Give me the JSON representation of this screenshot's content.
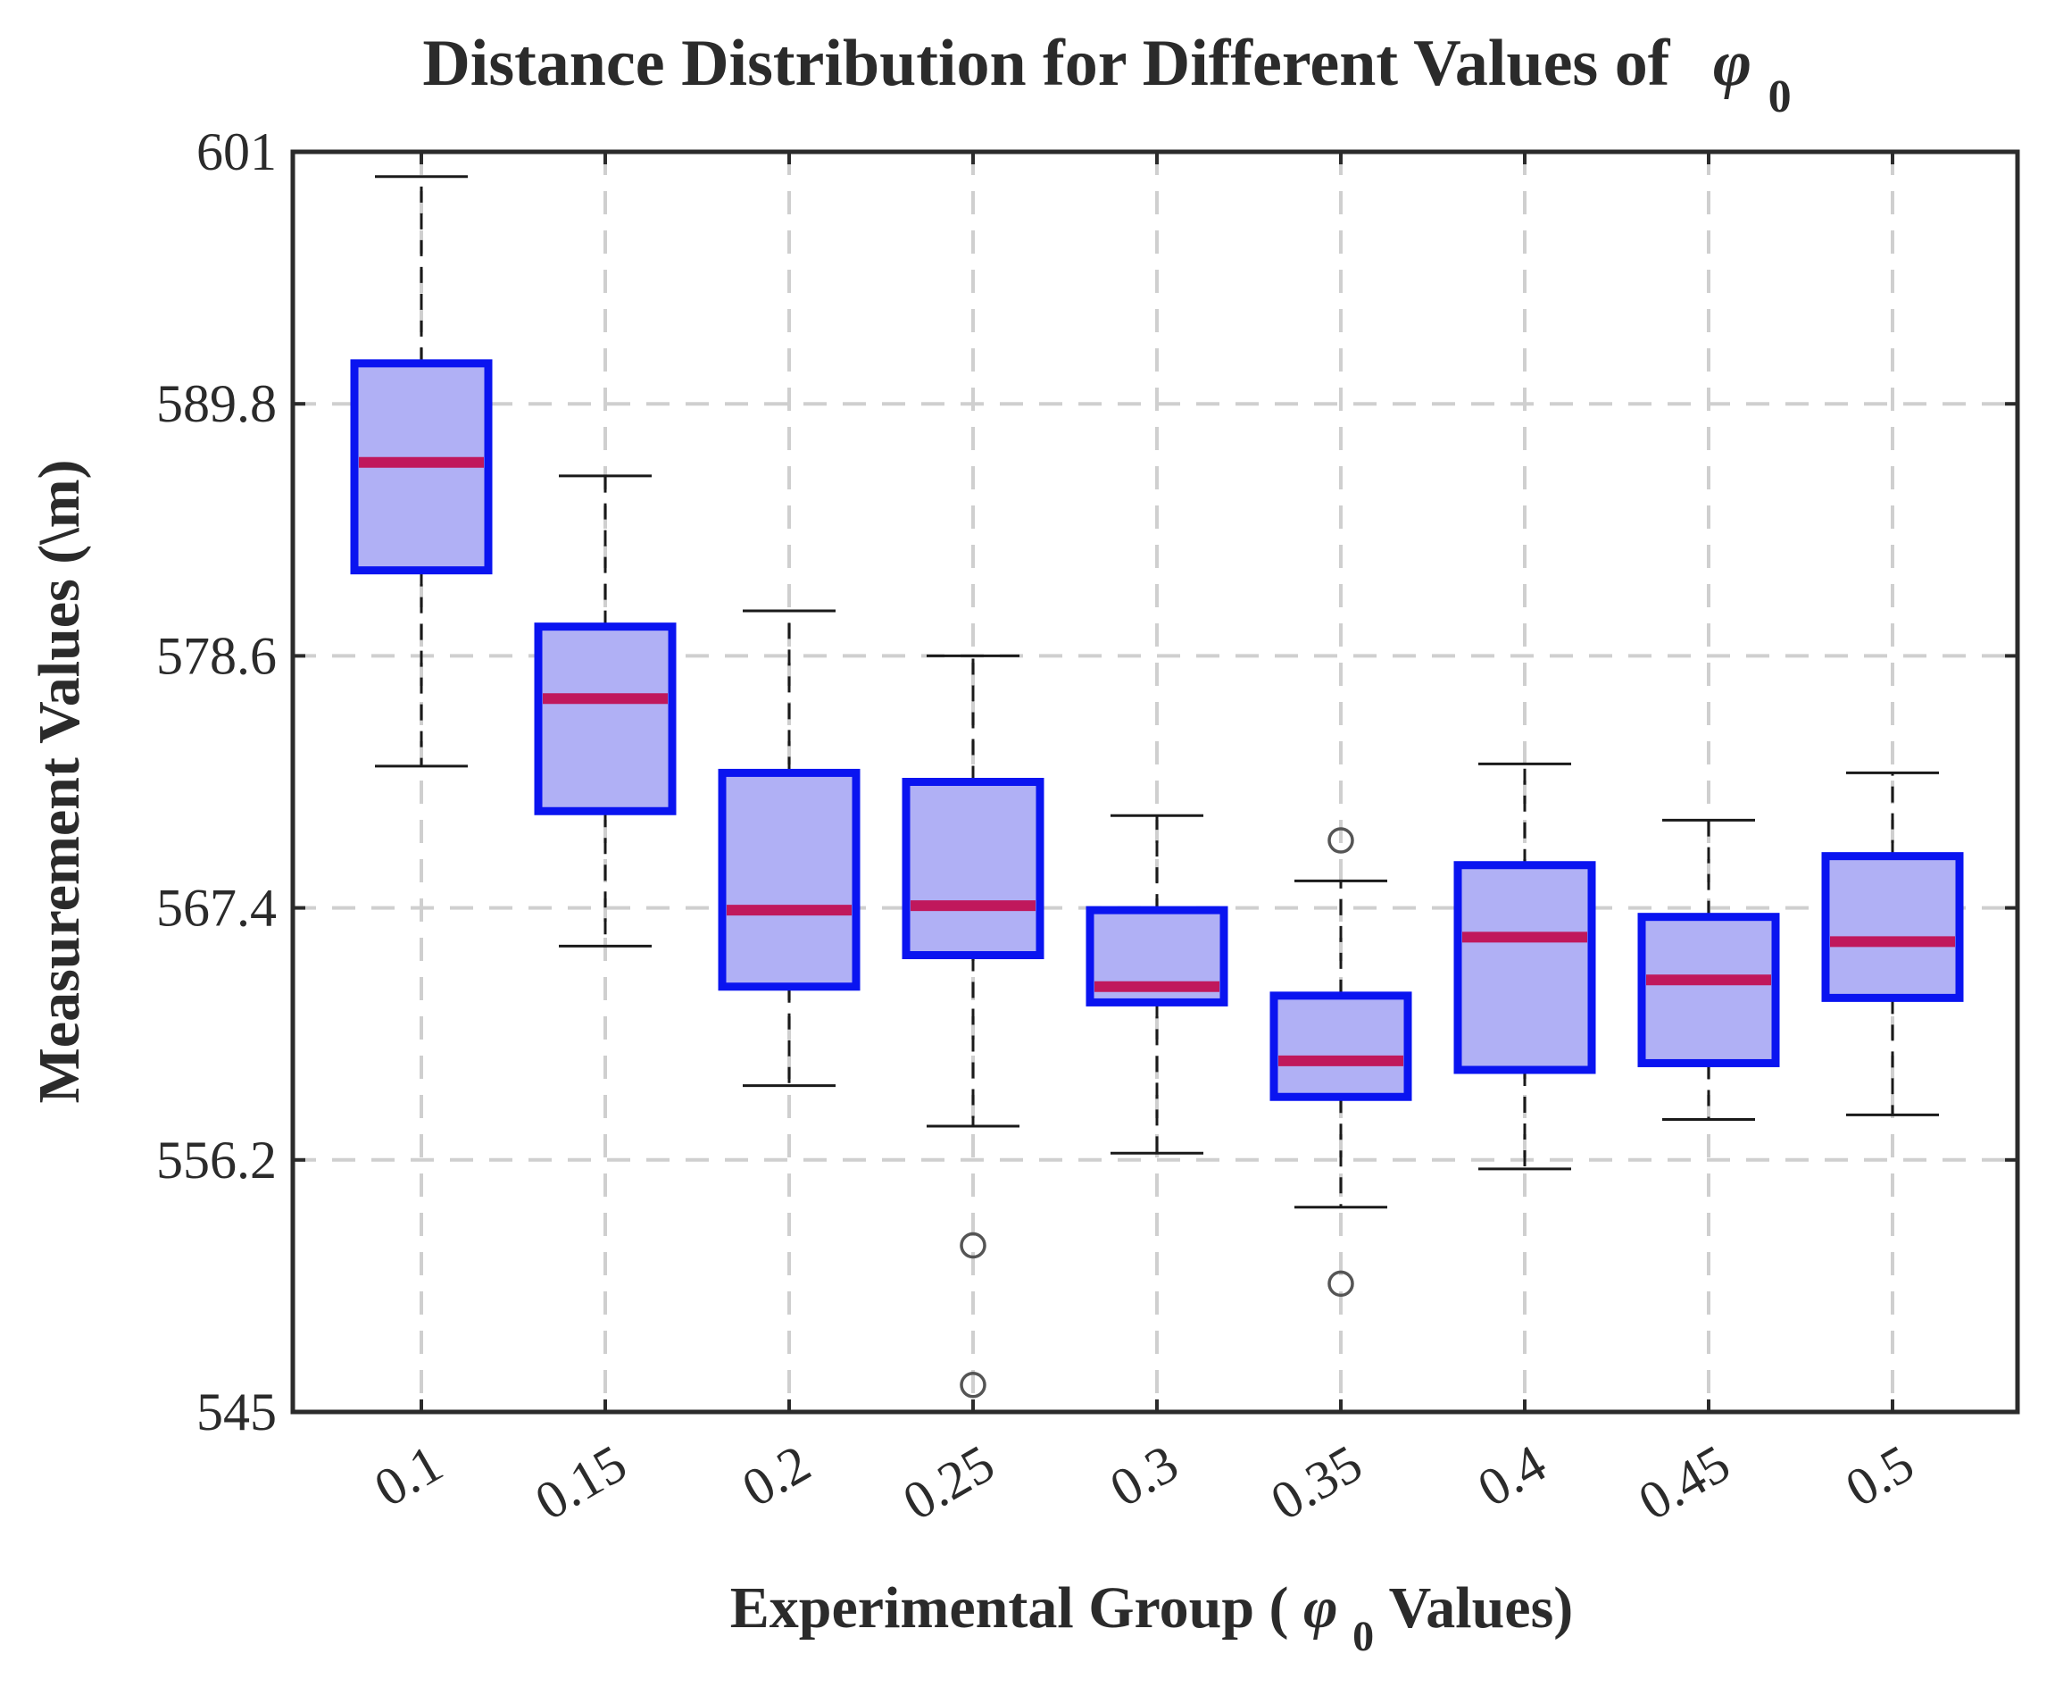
{
  "chart_data": {
    "type": "box",
    "title": "Distance Distribution for Different Values of",
    "title_symbol": "φ",
    "title_subscript": "0",
    "xlabel_prefix": "Experimental Group (",
    "xlabel_symbol": "φ",
    "xlabel_subscript": "0",
    "xlabel_suffix": " Values)",
    "ylabel": "Measurement Values (\\m)",
    "ylim": [
      545,
      601
    ],
    "yticks": [
      545,
      556.2,
      567.4,
      578.6,
      589.8,
      601
    ],
    "ytick_labels": [
      "545",
      "556.2",
      "567.4",
      "578.6",
      "589.8",
      "601"
    ],
    "grid": true,
    "categories": [
      "0.1",
      "0.15",
      "0.2",
      "0.25",
      "0.3",
      "0.35",
      "0.4",
      "0.45",
      "0.5"
    ],
    "boxes": [
      {
        "category": "0.1",
        "whisker_low": 573.7,
        "q1": 582.4,
        "median": 587.2,
        "q3": 591.6,
        "whisker_high": 599.9,
        "outliers": []
      },
      {
        "category": "0.15",
        "whisker_low": 565.7,
        "q1": 571.7,
        "median": 576.7,
        "q3": 579.9,
        "whisker_high": 586.6,
        "outliers": []
      },
      {
        "category": "0.2",
        "whisker_low": 559.5,
        "q1": 563.9,
        "median": 567.3,
        "q3": 573.4,
        "whisker_high": 580.6,
        "outliers": []
      },
      {
        "category": "0.25",
        "whisker_low": 557.7,
        "q1": 565.3,
        "median": 567.5,
        "q3": 573.0,
        "whisker_high": 578.6,
        "outliers": [
          552.4,
          546.2
        ]
      },
      {
        "category": "0.3",
        "whisker_low": 556.5,
        "q1": 563.2,
        "median": 563.9,
        "q3": 567.3,
        "whisker_high": 571.5,
        "outliers": []
      },
      {
        "category": "0.35",
        "whisker_low": 554.1,
        "q1": 559.0,
        "median": 560.6,
        "q3": 563.5,
        "whisker_high": 568.6,
        "outliers": [
          570.4,
          550.7
        ]
      },
      {
        "category": "0.4",
        "whisker_low": 555.8,
        "q1": 560.2,
        "median": 566.1,
        "q3": 569.3,
        "whisker_high": 573.8,
        "outliers": []
      },
      {
        "category": "0.45",
        "whisker_low": 558.0,
        "q1": 560.5,
        "median": 564.2,
        "q3": 567.0,
        "whisker_high": 571.3,
        "outliers": []
      },
      {
        "category": "0.5",
        "whisker_low": 558.2,
        "q1": 563.4,
        "median": 565.9,
        "q3": 569.7,
        "whisker_high": 573.4,
        "outliers": []
      }
    ],
    "colors": {
      "box_fill": "#b0b0f5",
      "box_edge": "#0a14f0",
      "median": "#c0185c",
      "whisker": "#1a1a1a",
      "outlier": "#555555",
      "grid": "#cfcfcf",
      "axis": "#2b2b2b",
      "text": "#2b2b2b"
    }
  }
}
